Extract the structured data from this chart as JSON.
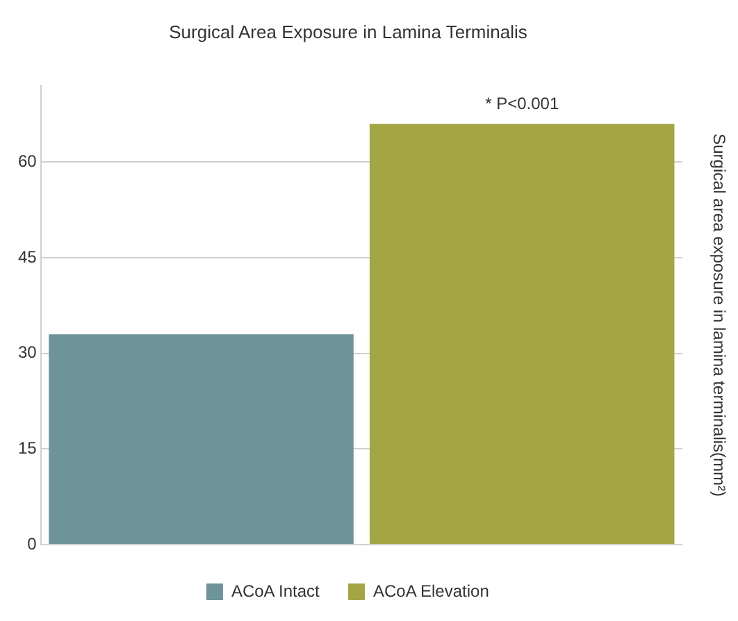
{
  "chart_data": {
    "type": "bar",
    "title": "Surgical Area Exposure in Lamina Terminalis",
    "ylabel": "Surgical area exposure in lamina terminalis(mm²)",
    "categories": [
      null,
      null
    ],
    "series": [
      {
        "name": "ACoA Intact",
        "color": "#6e9499",
        "values": [
          33,
          null
        ]
      },
      {
        "name": "ACoA Elevation",
        "color": "#a4a646",
        "values": [
          null,
          66
        ]
      }
    ],
    "ylim": [
      0,
      72
    ],
    "yticks": [
      0,
      15,
      30,
      45,
      60
    ],
    "grid": "y",
    "legend": "bottom",
    "annotations": [
      {
        "text": "* P<0.001",
        "y": 66
      }
    ]
  }
}
